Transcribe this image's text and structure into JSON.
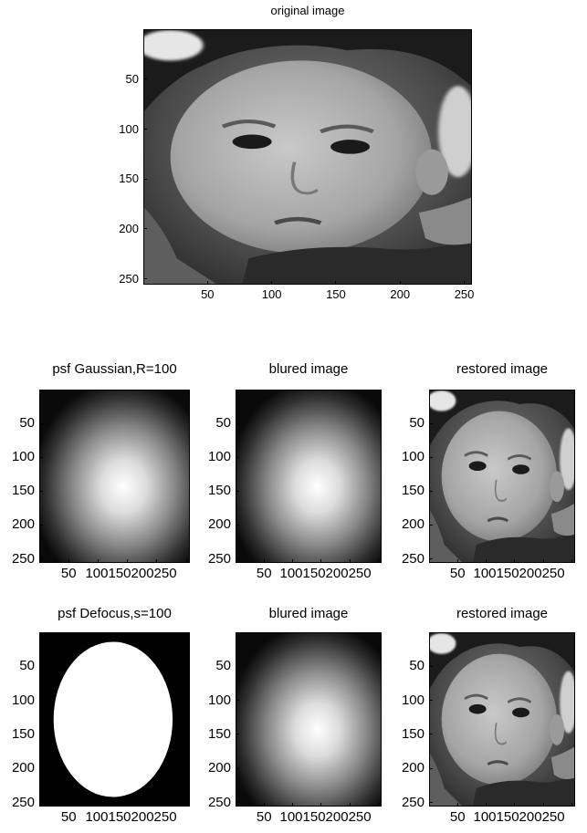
{
  "chart_data": [
    {
      "type": "image",
      "title": "original image",
      "content": "grayscale photo of a child's face",
      "xticks": [
        50,
        100,
        150,
        200,
        250
      ],
      "yticks": [
        50,
        100,
        150,
        200,
        250
      ],
      "xlim": [
        0,
        256
      ],
      "ylim": [
        0,
        256
      ]
    },
    {
      "type": "heatmap",
      "title": "psf Gaussian,R=100",
      "content": "gaussian blur centered near (150,130)",
      "xticks": [
        50,
        100,
        150,
        200,
        250
      ],
      "xtick_labels": [
        "50",
        "100150200250"
      ],
      "yticks": [
        50,
        100,
        150,
        200,
        250
      ],
      "xlim": [
        0,
        256
      ],
      "ylim": [
        0,
        256
      ]
    },
    {
      "type": "heatmap",
      "title": "blured image",
      "content": "gaussian blur centered near (150,130)",
      "xticks": [
        50,
        100,
        150,
        200,
        250
      ],
      "xtick_labels": [
        "50",
        "100150200250"
      ],
      "yticks": [
        50,
        100,
        150,
        200,
        250
      ],
      "xlim": [
        0,
        256
      ],
      "ylim": [
        0,
        256
      ]
    },
    {
      "type": "image",
      "title": "restored image",
      "content": "restored grayscale photo of a child's face",
      "xticks": [
        50,
        100,
        150,
        200,
        250
      ],
      "xtick_labels": [
        "50",
        "100150200250"
      ],
      "yticks": [
        50,
        100,
        150,
        200,
        250
      ],
      "xlim": [
        0,
        256
      ],
      "ylim": [
        0,
        256
      ]
    },
    {
      "type": "heatmap",
      "title": "psf Defocus,s=100",
      "content": "white disk on black background, center (128,128)",
      "xticks": [
        50,
        100,
        150,
        200,
        250
      ],
      "xtick_labels": [
        "50",
        "100150200250"
      ],
      "yticks": [
        50,
        100,
        150,
        200,
        250
      ],
      "xlim": [
        0,
        256
      ],
      "ylim": [
        0,
        256
      ]
    },
    {
      "type": "heatmap",
      "title": "blured image",
      "content": "gaussian blur centered near (150,130)",
      "xticks": [
        50,
        100,
        150,
        200,
        250
      ],
      "xtick_labels": [
        "50",
        "100150200250"
      ],
      "yticks": [
        50,
        100,
        150,
        200,
        250
      ],
      "xlim": [
        0,
        256
      ],
      "ylim": [
        0,
        256
      ]
    },
    {
      "type": "image",
      "title": "restored image",
      "content": "restored grayscale photo of a child's face",
      "xticks": [
        50,
        100,
        150,
        200,
        250
      ],
      "xtick_labels": [
        "50",
        "100150200250"
      ],
      "yticks": [
        50,
        100,
        150,
        200,
        250
      ],
      "xlim": [
        0,
        256
      ],
      "ylim": [
        0,
        256
      ]
    }
  ]
}
